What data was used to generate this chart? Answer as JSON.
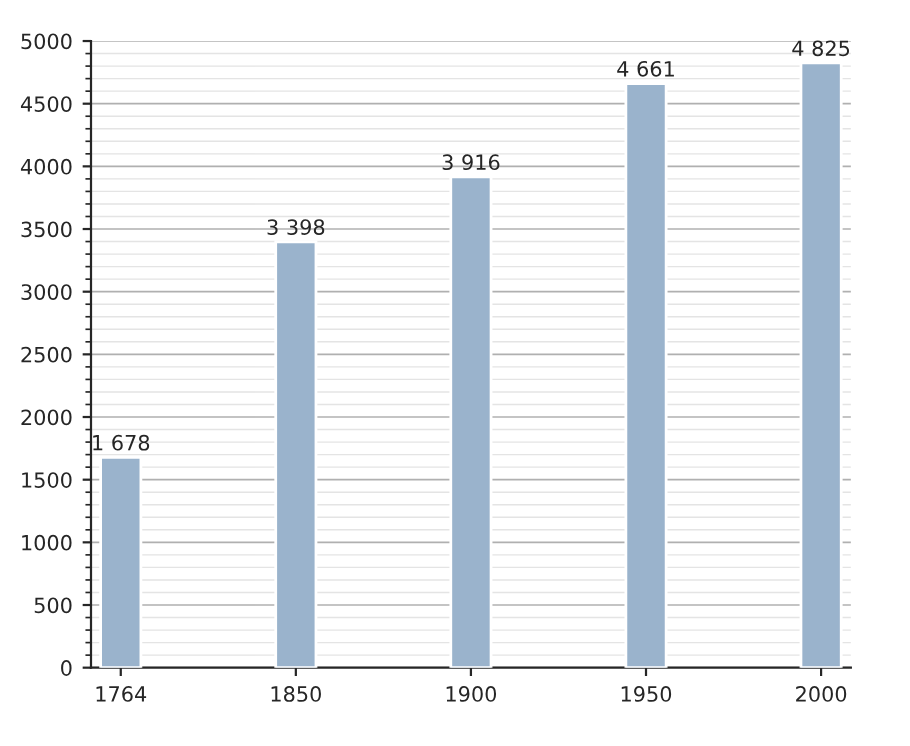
{
  "chart_data": {
    "type": "bar",
    "categories": [
      "1764",
      "1850",
      "1900",
      "1950",
      "2000"
    ],
    "values": [
      1678,
      3398,
      3916,
      4661,
      4825
    ],
    "value_labels": [
      "1 678",
      "3 398",
      "3 916",
      "4 661",
      "4 825"
    ],
    "color": "#9ab3cc",
    "ylim": [
      0,
      5000
    ],
    "yticks": [
      0,
      500,
      1000,
      1500,
      2000,
      2500,
      3000,
      3500,
      4000,
      4500,
      5000
    ],
    "grid": "y"
  }
}
